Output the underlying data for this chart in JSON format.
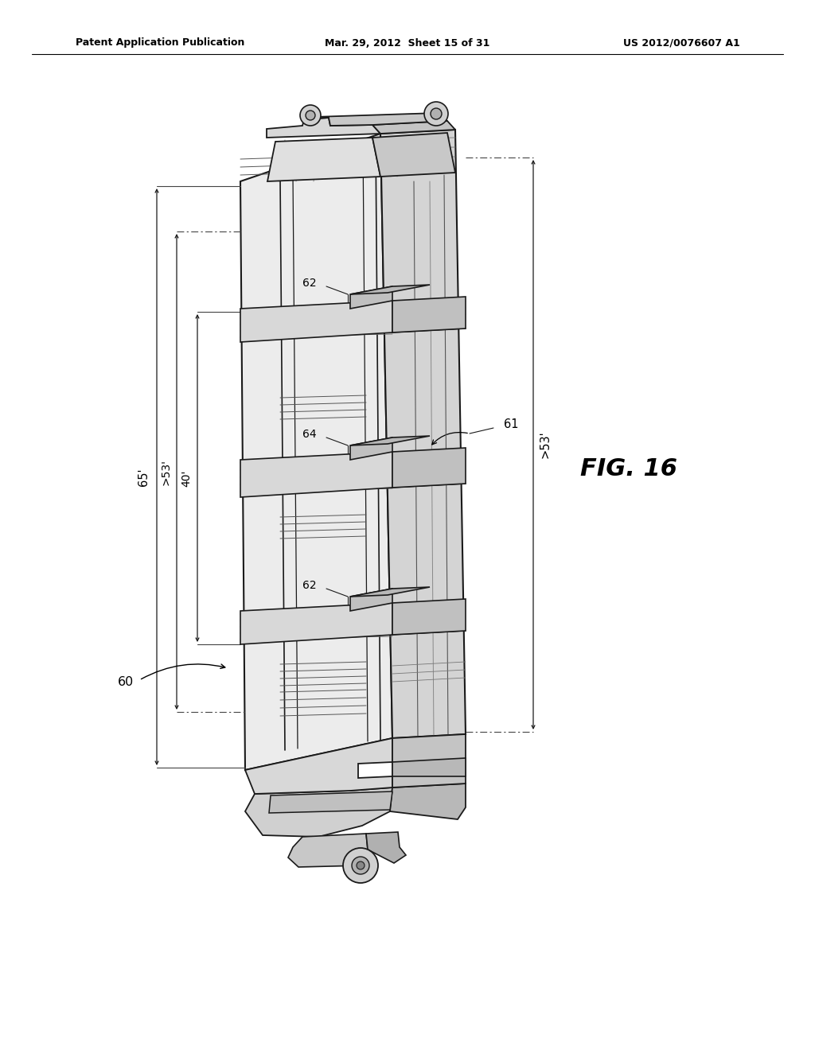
{
  "background_color": "#ffffff",
  "header_left": "Patent Application Publication",
  "header_center": "Mar. 29, 2012  Sheet 15 of 31",
  "header_right": "US 2012/0076607 A1",
  "line_color": "#1a1a1a",
  "gray_light": "#e0e0e0",
  "gray_mid": "#c0c0c0",
  "gray_dark": "#909090",
  "text_color": "#000000",
  "fig_label": "FIG. 16"
}
